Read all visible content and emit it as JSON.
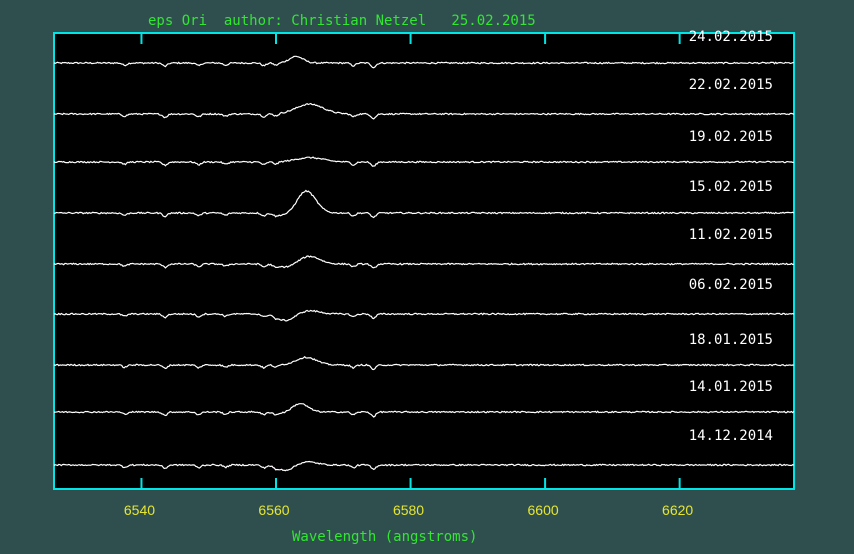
{
  "colors": {
    "background": "#2f4f4f",
    "plot_background": "#000000",
    "frame": "#00e5e5",
    "title": "#32e632",
    "xlabel": "#32e632",
    "tick_labels": "#e6e632",
    "spectra": "#ffffff",
    "date_labels": "#ffffff"
  },
  "chart_data": {
    "type": "line",
    "title": "eps Ori  author: Christian Netzel   25.02.2015",
    "xlabel": "Wavelength (angstroms)",
    "ylabel": "",
    "xlim": [
      6527,
      6637
    ],
    "xticks": [
      6540,
      6560,
      6580,
      6600,
      6620
    ],
    "xtick_labels": [
      "6540",
      "6560",
      "6580",
      "6600",
      "6620"
    ],
    "grid": false,
    "legend": "none",
    "series": [
      {
        "name": "24.02.2015",
        "emission_center": 6563.0,
        "emission_height": 0.12,
        "emission_width": 1.0,
        "absorption_depth": 0.0
      },
      {
        "name": "22.02.2015",
        "emission_center": 6565.0,
        "emission_height": 0.18,
        "emission_width": 2.0,
        "absorption_depth": 0.0
      },
      {
        "name": "19.02.2015",
        "emission_center": 6565.0,
        "emission_height": 0.08,
        "emission_width": 2.0,
        "absorption_depth": 0.0
      },
      {
        "name": "15.02.2015",
        "emission_center": 6564.5,
        "emission_height": 0.4,
        "emission_width": 1.4,
        "absorption_depth": 0.05
      },
      {
        "name": "11.02.2015",
        "emission_center": 6565.0,
        "emission_height": 0.14,
        "emission_width": 1.5,
        "absorption_depth": 0.06
      },
      {
        "name": "06.02.2015",
        "emission_center": 6565.0,
        "emission_height": 0.06,
        "emission_width": 1.5,
        "absorption_depth": 0.12
      },
      {
        "name": "18.01.2015",
        "emission_center": 6564.5,
        "emission_height": 0.14,
        "emission_width": 1.5,
        "absorption_depth": 0.0
      },
      {
        "name": "14.01.2015",
        "emission_center": 6563.5,
        "emission_height": 0.16,
        "emission_width": 1.2,
        "absorption_depth": 0.03
      },
      {
        "name": "14.12.2014",
        "emission_center": 6564.5,
        "emission_height": 0.06,
        "emission_width": 1.5,
        "absorption_depth": 0.1
      }
    ]
  }
}
